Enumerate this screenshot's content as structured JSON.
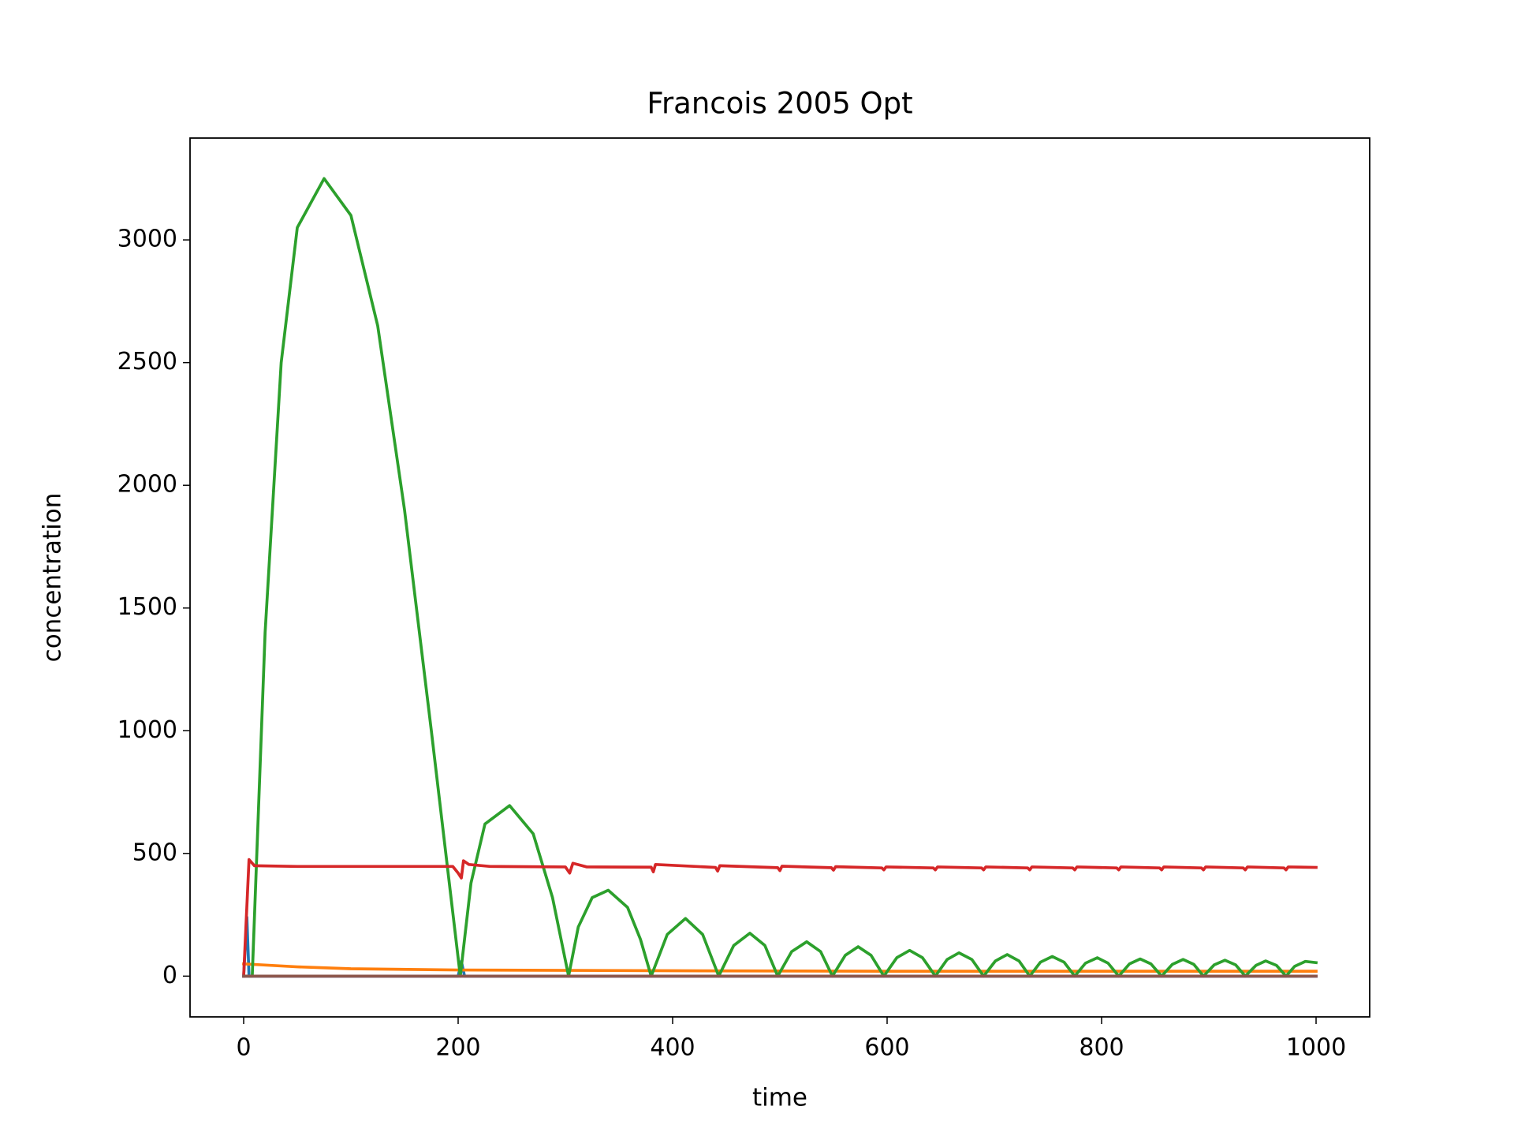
{
  "chart_data": {
    "type": "line",
    "title": "Francois 2005 Opt",
    "x_label": "time",
    "y_label": "concentration",
    "xlim": [
      -50,
      1050
    ],
    "ylim": [
      -166,
      3415
    ],
    "xticks": [
      0,
      200,
      400,
      600,
      800,
      1000
    ],
    "yticks": [
      0,
      500,
      1000,
      1500,
      2000,
      2500,
      3000
    ],
    "grid": false,
    "series": [
      {
        "color": "#1f77b4",
        "x": [
          0,
          3,
          5,
          200,
          203,
          206,
          1000
        ],
        "values": [
          0,
          240,
          0,
          0,
          60,
          0,
          0
        ]
      },
      {
        "color": "#ff7f0e",
        "x": [
          0,
          50,
          100,
          200,
          400,
          600,
          800,
          1000
        ],
        "values": [
          50,
          38,
          30,
          25,
          22,
          20,
          20,
          20
        ]
      },
      {
        "color": "#2ca02c",
        "x": [
          0,
          8,
          20,
          35,
          50,
          75,
          100,
          125,
          150,
          175,
          202,
          212,
          225,
          248,
          270,
          288,
          303,
          312,
          325,
          340,
          358,
          370,
          380,
          395,
          412,
          428,
          443,
          457,
          472,
          486,
          498,
          511,
          525,
          538,
          549,
          561,
          573,
          585,
          597,
          609,
          621,
          633,
          645,
          656,
          667,
          679,
          690,
          701,
          712,
          723,
          733,
          743,
          754,
          765,
          775,
          785,
          796,
          806,
          816,
          826,
          836,
          846,
          856,
          866,
          876,
          886,
          895,
          905,
          915,
          925,
          934,
          944,
          953,
          963,
          972,
          980,
          990,
          1000
        ],
        "values": [
          0,
          0,
          1400,
          2500,
          3050,
          3250,
          3100,
          2650,
          1900,
          1000,
          0,
          380,
          620,
          695,
          580,
          320,
          0,
          200,
          320,
          350,
          280,
          150,
          0,
          170,
          235,
          170,
          0,
          125,
          175,
          125,
          0,
          100,
          140,
          100,
          0,
          85,
          120,
          85,
          0,
          75,
          105,
          75,
          0,
          68,
          95,
          68,
          0,
          62,
          88,
          62,
          0,
          57,
          80,
          57,
          0,
          53,
          75,
          53,
          0,
          50,
          70,
          50,
          0,
          48,
          68,
          48,
          0,
          46,
          65,
          46,
          0,
          44,
          62,
          44,
          0,
          40,
          60,
          55
        ]
      },
      {
        "color": "#d62728",
        "x": [
          0,
          5,
          10,
          50,
          195,
          200,
          203,
          205,
          210,
          230,
          300,
          304,
          307,
          320,
          380,
          382,
          384,
          440,
          442,
          444,
          498,
          500,
          502,
          548,
          550,
          552,
          595,
          597,
          599,
          643,
          645,
          647,
          688,
          690,
          692,
          731,
          733,
          735,
          773,
          775,
          777,
          814,
          816,
          818,
          854,
          856,
          858,
          893,
          895,
          897,
          932,
          934,
          936,
          970,
          972,
          974,
          1000
        ],
        "values": [
          0,
          475,
          450,
          447,
          447,
          420,
          400,
          470,
          455,
          447,
          445,
          420,
          460,
          445,
          444,
          425,
          455,
          443,
          428,
          450,
          442,
          430,
          448,
          442,
          432,
          446,
          441,
          433,
          445,
          441,
          433,
          445,
          441,
          433,
          445,
          441,
          433,
          445,
          441,
          433,
          445,
          441,
          433,
          445,
          441,
          433,
          445,
          441,
          433,
          445,
          441,
          433,
          445,
          441,
          433,
          445,
          443
        ]
      },
      {
        "color": "#9467bd",
        "x": [
          0,
          1000
        ],
        "values": [
          0,
          0
        ]
      },
      {
        "color": "#8c564b",
        "x": [
          0,
          1000
        ],
        "values": [
          0,
          0
        ]
      }
    ]
  }
}
